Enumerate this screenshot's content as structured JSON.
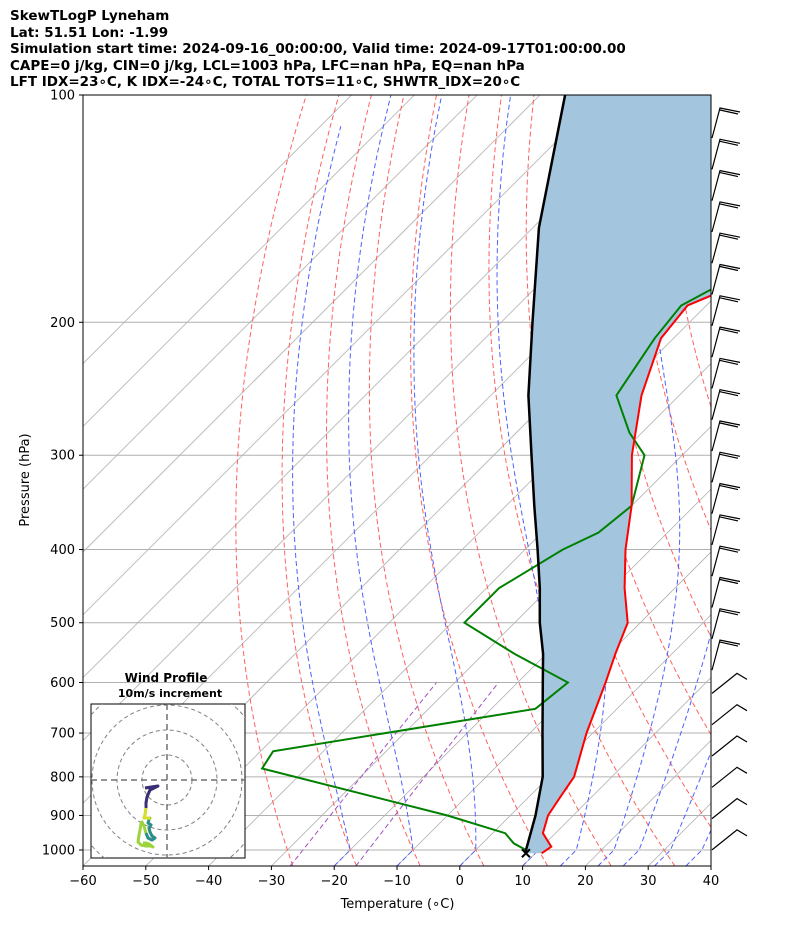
{
  "header": {
    "line1": "SkewTLogP Lyneham",
    "line2": "Lat: 51.51   Lon: -1.99",
    "line3": "Simulation start time: 2024-09-16_00:00:00, Valid time: 2024-09-17T01:00:00.00",
    "line4": "CAPE=0 j/kg, CIN=0 j/kg, LCL=1003 hPa, LFC=nan hPa, EQ=nan hPa",
    "line5": "LFT IDX=23∘C, K IDX=-24∘C, TOTAL TOTS=11∘C, SHWTR_IDX=20∘C"
  },
  "chart_data": {
    "type": "line",
    "subtype": "skew-t log-p",
    "xlabel": "Temperature (∘C)",
    "ylabel": "Pressure (hPa)",
    "xlim": [
      -60,
      40
    ],
    "ylim": [
      1050,
      100
    ],
    "y_scale": "log",
    "x_ticks": [
      -60,
      -50,
      -40,
      -30,
      -20,
      -10,
      0,
      10,
      20,
      30,
      40
    ],
    "x_tick_labels": [
      "−60",
      "−50",
      "−40",
      "−30",
      "−20",
      "−10",
      "0",
      "10",
      "20",
      "30",
      "40"
    ],
    "y_ticks": [
      100,
      200,
      300,
      400,
      500,
      600,
      700,
      800,
      900,
      1000
    ],
    "grid": true,
    "colors": {
      "temperature": "#ff0000",
      "dewpoint": "#008000",
      "parcel": "#000000",
      "shade": "#a3c6de",
      "isotherm": "#b0b0b0",
      "dry_adiabat": "#ff6060",
      "moist_adiabat": "#5060ff",
      "mixing_ratio": "#a050c0"
    },
    "series": [
      {
        "key": "temperature",
        "points": [
          [
            100,
            -24
          ],
          [
            120,
            -29
          ],
          [
            150,
            -37
          ],
          [
            170,
            -45
          ],
          [
            190,
            -53
          ],
          [
            210,
            -52
          ],
          [
            250,
            -46
          ],
          [
            300,
            -38
          ],
          [
            350,
            -30
          ],
          [
            400,
            -24
          ],
          [
            450,
            -18
          ],
          [
            500,
            -12
          ],
          [
            550,
            -9
          ],
          [
            600,
            -6
          ],
          [
            700,
            -1
          ],
          [
            800,
            4
          ],
          [
            850,
            5
          ],
          [
            900,
            6
          ],
          [
            950,
            8
          ],
          [
            990,
            11.5
          ],
          [
            1010,
            11
          ]
        ]
      },
      {
        "key": "dewpoint",
        "points": [
          [
            100,
            -35
          ],
          [
            120,
            -42
          ],
          [
            135,
            -43
          ],
          [
            150,
            -45
          ],
          [
            170,
            -49
          ],
          [
            190,
            -54
          ],
          [
            210,
            -53
          ],
          [
            250,
            -50
          ],
          [
            280,
            -42
          ],
          [
            300,
            -36
          ],
          [
            350,
            -30
          ],
          [
            380,
            -31
          ],
          [
            400,
            -34
          ],
          [
            450,
            -38
          ],
          [
            500,
            -38
          ],
          [
            550,
            -25
          ],
          [
            600,
            -12
          ],
          [
            650,
            -13
          ],
          [
            740,
            -48
          ],
          [
            780,
            -47
          ],
          [
            900,
            -10
          ],
          [
            950,
            2
          ],
          [
            980,
            5
          ],
          [
            1000,
            8
          ],
          [
            1010,
            8.5
          ]
        ]
      },
      {
        "key": "parcel",
        "points": [
          [
            100,
            -106
          ],
          [
            150,
            -89
          ],
          [
            200,
            -75
          ],
          [
            250,
            -64
          ],
          [
            300,
            -54
          ],
          [
            350,
            -45.5
          ],
          [
            400,
            -38
          ],
          [
            450,
            -31.5
          ],
          [
            500,
            -26
          ],
          [
            550,
            -20.5
          ],
          [
            600,
            -16
          ],
          [
            700,
            -8
          ],
          [
            800,
            -1
          ],
          [
            900,
            4
          ],
          [
            1000,
            8
          ],
          [
            1010,
            8.5
          ]
        ]
      }
    ]
  },
  "wind_profile": {
    "title": "Wind Profile",
    "subtitle": "10m/s increment"
  }
}
